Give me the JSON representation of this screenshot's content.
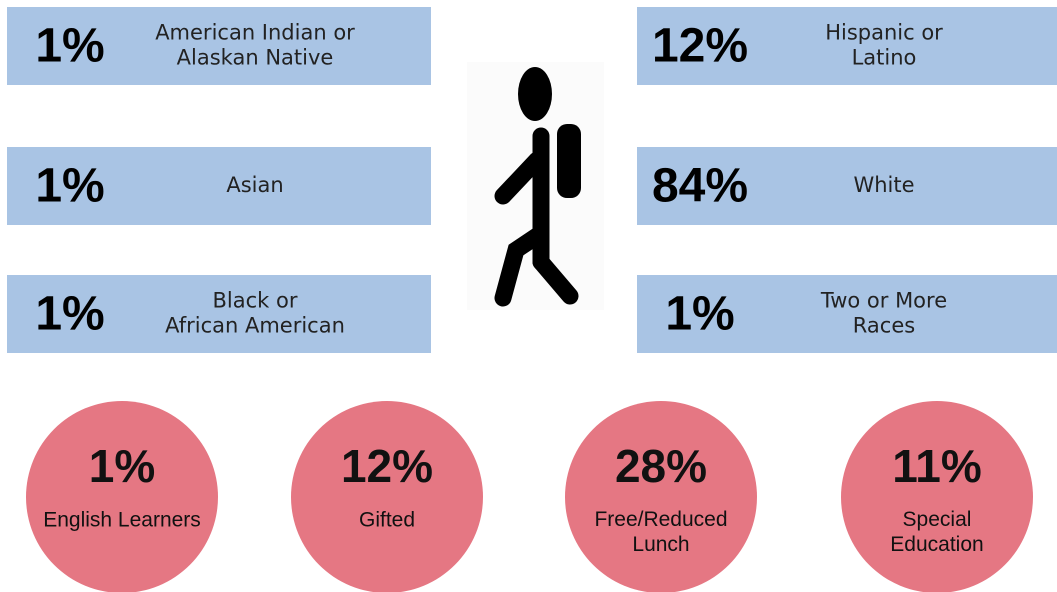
{
  "demographics": [
    {
      "value": "1%",
      "label": [
        "American Indian or",
        "Alaskan Native"
      ]
    },
    {
      "value": "1%",
      "label": [
        "Asian"
      ]
    },
    {
      "value": "1%",
      "label": [
        "Black or",
        "African American"
      ]
    },
    {
      "value": "12%",
      "label": [
        "Hispanic or",
        "Latino"
      ]
    },
    {
      "value": "84%",
      "label": [
        "White"
      ]
    },
    {
      "value": "1%",
      "label": [
        "Two or More",
        "Races"
      ]
    }
  ],
  "programs": [
    {
      "value": "1%",
      "label": [
        "English Learners"
      ]
    },
    {
      "value": "12%",
      "label": [
        "Gifted"
      ]
    },
    {
      "value": "28%",
      "label": [
        "Free/Reduced",
        "Lunch"
      ]
    },
    {
      "value": "11%",
      "label": [
        "Special",
        "Education"
      ]
    }
  ]
}
